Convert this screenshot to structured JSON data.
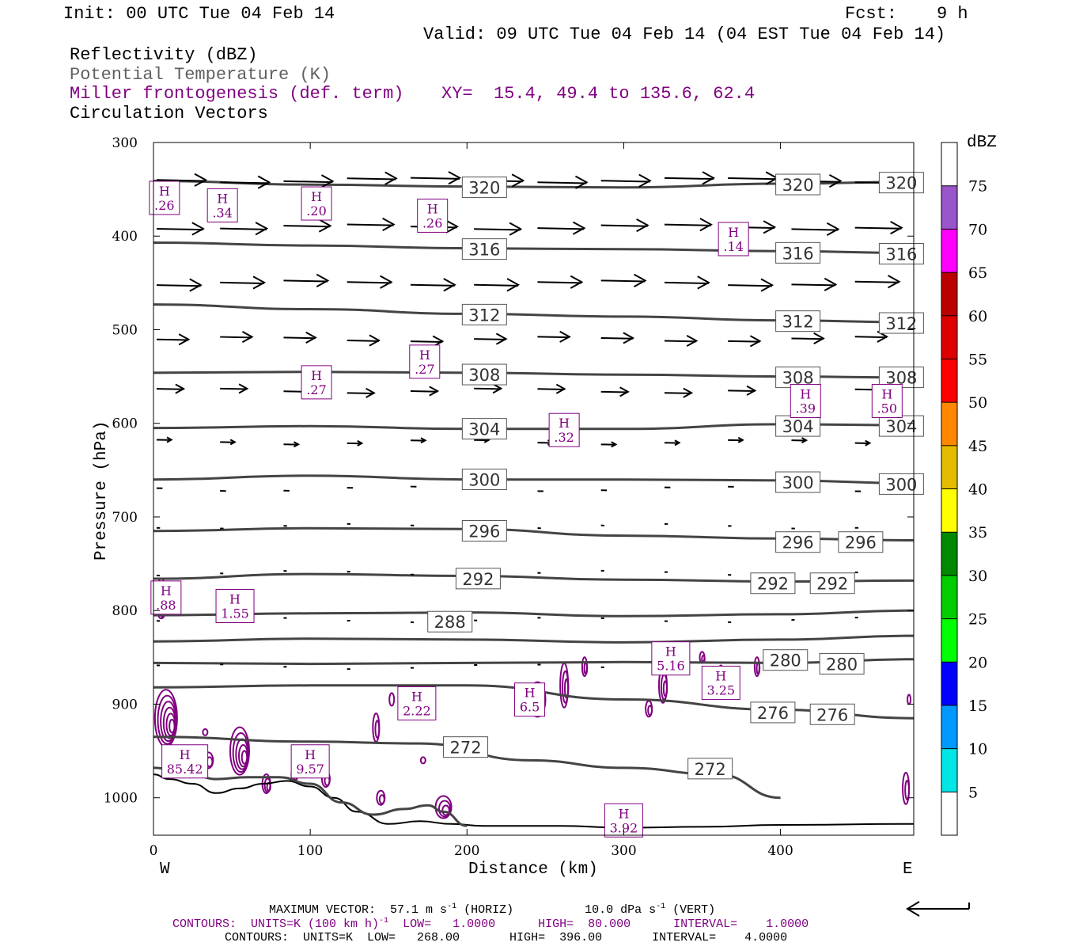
{
  "header": {
    "init": "Init: 00 UTC Tue 04 Feb 14",
    "fcst_label": "Fcst:",
    "fcst_value": "9 h",
    "valid": "Valid: 09 UTC Tue 04 Feb 14 (04 EST Tue 04 Feb 14)",
    "field1": "Reflectivity (dBZ)",
    "field2": "Potential Temperature (K)",
    "field3": "Miller frontogenesis (def. term)",
    "xy": "XY=  15.4, 49.4 to 135.6, 62.4",
    "field4": "Circulation Vectors"
  },
  "colors": {
    "theta": "#444444",
    "fronto": "#800080",
    "vector": "#000000",
    "subtitle_gray": "#606060"
  },
  "colorbar": {
    "unit": "dBZ",
    "levels": [
      5,
      10,
      15,
      20,
      25,
      30,
      35,
      40,
      45,
      50,
      55,
      60,
      65,
      70,
      75
    ],
    "level_labels": [
      "5",
      "10",
      "15",
      "20",
      "25",
      "30",
      "35",
      "40",
      "45",
      "50",
      "55",
      "60",
      "65",
      "70",
      "75"
    ],
    "colors": [
      "#ffffff",
      "#00e5e5",
      "#0099ff",
      "#0000ff",
      "#00ff00",
      "#00cc00",
      "#008800",
      "#ffff00",
      "#e5bb00",
      "#ff8800",
      "#ff0000",
      "#dd0000",
      "#bb0000",
      "#ff00ff",
      "#9955cc",
      "#ffffff"
    ]
  },
  "chart_data": {
    "type": "cross-section",
    "xlabel": "Distance (km)",
    "ylabel": "Pressure (hPa)",
    "xlim": [
      0,
      485
    ],
    "ylim": [
      300,
      1040
    ],
    "x_ticks": [
      "0",
      "100",
      "200",
      "300",
      "400"
    ],
    "y_ticks": [
      "300",
      "400",
      "500",
      "600",
      "700",
      "800",
      "900",
      "1000"
    ],
    "x_tick_values": [
      0,
      100,
      200,
      300,
      400
    ],
    "y_tick_values": [
      300,
      400,
      500,
      600,
      700,
      800,
      900,
      1000
    ],
    "left_end": "W",
    "right_end": "E",
    "isentropes": [
      {
        "theta": 320,
        "points": [
          [
            0,
            341
          ],
          [
            100,
            345
          ],
          [
            200,
            347
          ],
          [
            300,
            348
          ],
          [
            400,
            344
          ],
          [
            485,
            342
          ]
        ],
        "labels": [
          [
            198,
            347
          ],
          [
            398,
            344
          ],
          [
            464,
            342
          ]
        ]
      },
      {
        "theta": 316,
        "points": [
          [
            0,
            407
          ],
          [
            100,
            410
          ],
          [
            200,
            413
          ],
          [
            300,
            414
          ],
          [
            400,
            416
          ],
          [
            485,
            418
          ]
        ],
        "labels": [
          [
            198,
            413
          ],
          [
            398,
            417
          ],
          [
            464,
            418
          ]
        ]
      },
      {
        "theta": 312,
        "points": [
          [
            0,
            473
          ],
          [
            100,
            478
          ],
          [
            200,
            483
          ],
          [
            300,
            486
          ],
          [
            400,
            490
          ],
          [
            485,
            492
          ]
        ],
        "labels": [
          [
            198,
            483
          ],
          [
            398,
            490
          ],
          [
            464,
            492
          ]
        ]
      },
      {
        "theta": 308,
        "points": [
          [
            0,
            546
          ],
          [
            100,
            545
          ],
          [
            200,
            546
          ],
          [
            300,
            548
          ],
          [
            400,
            550
          ],
          [
            485,
            551
          ]
        ],
        "labels": [
          [
            198,
            547
          ],
          [
            398,
            550
          ],
          [
            464,
            550
          ]
        ]
      },
      {
        "theta": 304,
        "points": [
          [
            0,
            605
          ],
          [
            100,
            603
          ],
          [
            200,
            606
          ],
          [
            300,
            606
          ],
          [
            400,
            601
          ],
          [
            485,
            602
          ]
        ],
        "labels": [
          [
            198,
            605
          ],
          [
            398,
            602
          ],
          [
            464,
            602
          ]
        ]
      },
      {
        "theta": 300,
        "points": [
          [
            0,
            660
          ],
          [
            100,
            656
          ],
          [
            200,
            660
          ],
          [
            300,
            660
          ],
          [
            400,
            661
          ],
          [
            485,
            664
          ]
        ],
        "labels": [
          [
            198,
            659
          ],
          [
            398,
            662
          ],
          [
            464,
            664
          ]
        ]
      },
      {
        "theta": 296,
        "points": [
          [
            0,
            715
          ],
          [
            100,
            712
          ],
          [
            200,
            713
          ],
          [
            300,
            720
          ],
          [
            400,
            723
          ],
          [
            485,
            725
          ]
        ],
        "labels": [
          [
            198,
            714
          ],
          [
            398,
            726
          ],
          [
            438,
            726
          ]
        ]
      },
      {
        "theta": 292,
        "points": [
          [
            0,
            766
          ],
          [
            100,
            761
          ],
          [
            200,
            763
          ],
          [
            300,
            767
          ],
          [
            400,
            769
          ],
          [
            485,
            768
          ]
        ],
        "labels": [
          [
            194,
            765
          ],
          [
            382,
            770
          ],
          [
            420,
            770
          ]
        ]
      },
      {
        "theta": 288,
        "points": [
          [
            0,
            805
          ],
          [
            100,
            803
          ],
          [
            200,
            802
          ],
          [
            300,
            806
          ],
          [
            400,
            804
          ],
          [
            485,
            800
          ]
        ],
        "labels": [
          [
            176,
            811
          ]
        ]
      },
      {
        "theta": 284,
        "points": [
          [
            0,
            833
          ],
          [
            100,
            830
          ],
          [
            200,
            831
          ],
          [
            300,
            834
          ],
          [
            400,
            831
          ],
          [
            485,
            827
          ]
        ],
        "labels": []
      },
      {
        "theta": 280,
        "points": [
          [
            0,
            856
          ],
          [
            100,
            857
          ],
          [
            200,
            856
          ],
          [
            300,
            855
          ],
          [
            400,
            856
          ],
          [
            485,
            852
          ]
        ],
        "labels": [
          [
            390,
            852
          ],
          [
            426,
            856
          ]
        ]
      },
      {
        "theta": 276,
        "points": [
          [
            0,
            882
          ],
          [
            100,
            880
          ],
          [
            200,
            880
          ],
          [
            300,
            895
          ],
          [
            400,
            906
          ],
          [
            485,
            915
          ]
        ],
        "labels": [
          [
            382,
            908
          ],
          [
            420,
            910
          ]
        ]
      },
      {
        "theta": 272,
        "points": [
          [
            0,
            935
          ],
          [
            100,
            940
          ],
          [
            170,
            942
          ],
          [
            240,
            960
          ],
          [
            300,
            968
          ],
          [
            360,
            975
          ],
          [
            400,
            1000
          ]
        ],
        "labels": [
          [
            186,
            945
          ],
          [
            342,
            968
          ]
        ]
      }
    ],
    "frontogenesis_maxima": [
      {
        "x": 7,
        "p": 360,
        "value": ".26"
      },
      {
        "x": 44,
        "p": 368,
        "value": ".34"
      },
      {
        "x": 104,
        "p": 366,
        "value": ".20"
      },
      {
        "x": 178,
        "p": 379,
        "value": ".26"
      },
      {
        "x": 370,
        "p": 404,
        "value": ".14"
      },
      {
        "x": 173,
        "p": 535,
        "value": ".27"
      },
      {
        "x": 104,
        "p": 557,
        "value": ".27"
      },
      {
        "x": 416,
        "p": 577,
        "value": ".39"
      },
      {
        "x": 468,
        "p": 577,
        "value": ".50"
      },
      {
        "x": 262,
        "p": 608,
        "value": ".32"
      },
      {
        "x": 8,
        "p": 787,
        "value": ".88"
      },
      {
        "x": 52,
        "p": 796,
        "value": "1.55"
      },
      {
        "x": 330,
        "p": 852,
        "value": "5.16"
      },
      {
        "x": 362,
        "p": 878,
        "value": "3.25"
      },
      {
        "x": 168,
        "p": 900,
        "value": "2.22"
      },
      {
        "x": 240,
        "p": 896,
        "value": "6.5"
      },
      {
        "x": 20,
        "p": 962,
        "value": "85.42"
      },
      {
        "x": 100,
        "p": 962,
        "value": "9.57"
      },
      {
        "x": 300,
        "p": 1025,
        "value": "3.92"
      }
    ],
    "circulation_vectors": {
      "max_horizontal": "57.1 m s⁻¹ (HORIZ)",
      "max_vertical": "10.0 dPa s⁻¹ (VERT)",
      "levels": [
        340,
        390,
        450,
        510,
        565,
        620,
        670,
        710,
        760,
        810,
        860
      ],
      "rel_length": [
        1.0,
        0.95,
        0.9,
        0.65,
        0.55,
        0.3,
        0.12,
        0.07,
        0.05,
        0.03,
        0.02
      ]
    }
  },
  "footer": {
    "max_vector_label": "MAXIMUM VECTOR:",
    "max_h": "57.1 m s",
    "max_h_exp": "-1",
    "max_h_tail": " (HORIZ)",
    "max_v": "10.0 dPa s",
    "max_v_exp": "-1",
    "max_v_tail": " (VERT)",
    "contours1_a": "CONTOURS:  UNITS=K (100 km h)",
    "contours1_exp": "-1",
    "contours1_b": "  LOW=   1.0000      HIGH=  80.000      INTERVAL=    1.0000",
    "contours2": "CONTOURS:  UNITS=K  LOW=   268.00       HIGH=  396.00       INTERVAL=    4.0000"
  }
}
